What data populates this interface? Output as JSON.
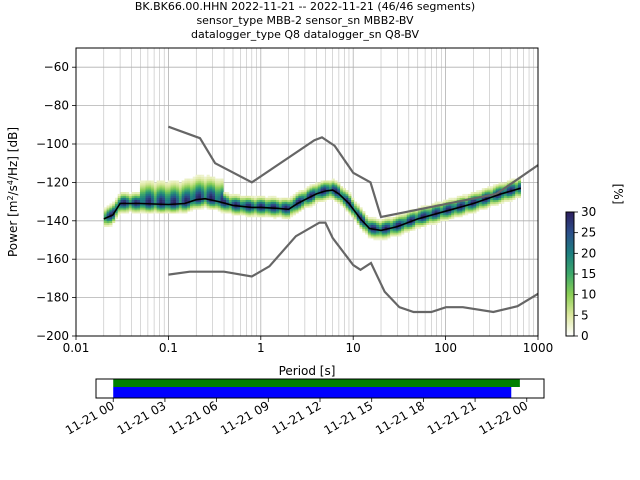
{
  "chart_data": [
    {
      "type": "heatmap",
      "title_lines": [
        "BK.BK66.00.HHN   2022-11-21 -- 2022-11-21  (46/46 segments)",
        "sensor_type MBB-2 sensor_sn MBB2-BV",
        "datalogger_type Q8 datalogger_sn Q8-BV"
      ],
      "xlabel": "Period [s]",
      "ylabel": "Power [m²/s⁴/Hz] [dB]",
      "ylabel_parts": {
        "pre": "Power [m",
        "sup1": "2",
        "mid": "/s",
        "sup2": "4",
        "post": "/Hz] [dB]"
      },
      "xscale": "log",
      "xlim": [
        0.01,
        1000
      ],
      "ylim": [
        -200,
        -50
      ],
      "xticks": [
        0.01,
        0.1,
        1,
        10,
        100,
        1000
      ],
      "xtick_labels": [
        "0.01",
        "0.1",
        "1",
        "10",
        "100",
        "1000"
      ],
      "yticks": [
        -200,
        -180,
        -160,
        -140,
        -120,
        -100,
        -80,
        -60
      ],
      "ytick_labels": [
        "−200",
        "−180",
        "−160",
        "−140",
        "−120",
        "−100",
        "−80",
        "−60"
      ],
      "grid": true,
      "colorbar": {
        "label": "[%]",
        "range": [
          0,
          30
        ],
        "ticks": [
          0,
          5,
          10,
          15,
          20,
          25,
          30
        ],
        "tick_labels": [
          "0",
          "5",
          "10",
          "15",
          "20",
          "25",
          "30"
        ],
        "colors": [
          "#ffffff",
          "#dde8a0",
          "#8ccf55",
          "#3da86a",
          "#1d7f80",
          "#2c4f8a",
          "#2d1e5e"
        ]
      },
      "noise_model_high": [
        [
          0.1,
          -91
        ],
        [
          0.22,
          -97
        ],
        [
          0.32,
          -110
        ],
        [
          0.8,
          -120
        ],
        [
          3.8,
          -98
        ],
        [
          4.6,
          -96.5
        ],
        [
          6.3,
          -101
        ],
        [
          10,
          -115
        ],
        [
          15.4,
          -120
        ],
        [
          20,
          -138
        ],
        [
          354.8,
          -126
        ],
        [
          1000,
          -111
        ]
      ],
      "noise_model_low": [
        [
          0.1,
          -168
        ],
        [
          0.17,
          -166.5
        ],
        [
          0.4,
          -166.5
        ],
        [
          0.8,
          -169
        ],
        [
          1.24,
          -163.7
        ],
        [
          2.4,
          -148
        ],
        [
          4.3,
          -141
        ],
        [
          5,
          -141
        ],
        [
          6,
          -149
        ],
        [
          10,
          -163
        ],
        [
          12,
          -165.5
        ],
        [
          15.6,
          -162
        ],
        [
          21.9,
          -177
        ],
        [
          31.6,
          -185
        ],
        [
          45,
          -187.5
        ],
        [
          70,
          -187.5
        ],
        [
          101,
          -185
        ],
        [
          154,
          -185
        ],
        [
          328,
          -187.5
        ],
        [
          600,
          -184.5
        ],
        [
          1000,
          -178
        ]
      ],
      "mode_curve": [
        [
          0.02,
          -139
        ],
        [
          0.025,
          -137
        ],
        [
          0.03,
          -131
        ],
        [
          0.05,
          -131
        ],
        [
          0.1,
          -131.5
        ],
        [
          0.15,
          -131
        ],
        [
          0.2,
          -129
        ],
        [
          0.25,
          -128.5
        ],
        [
          0.35,
          -130
        ],
        [
          0.5,
          -132
        ],
        [
          0.8,
          -133
        ],
        [
          1,
          -133
        ],
        [
          1.5,
          -133.5
        ],
        [
          2,
          -134
        ],
        [
          2.5,
          -131
        ],
        [
          3,
          -129
        ],
        [
          4,
          -126
        ],
        [
          5,
          -124.5
        ],
        [
          6,
          -124
        ],
        [
          7,
          -126
        ],
        [
          9,
          -131
        ],
        [
          12,
          -139
        ],
        [
          15,
          -144
        ],
        [
          20,
          -145
        ],
        [
          30,
          -143
        ],
        [
          50,
          -139
        ],
        [
          100,
          -135
        ],
        [
          200,
          -131
        ],
        [
          400,
          -126
        ],
        [
          650,
          -123
        ]
      ],
      "density_band": {
        "period_range": [
          0.02,
          650
        ],
        "low_offset_db": -5,
        "high_offset_db": 5,
        "upper_spread_db": 11,
        "upper_spread_period": [
          0.05,
          0.4
        ]
      }
    },
    {
      "type": "timeline",
      "xtick_labels": [
        "11-21 00",
        "11-21 03",
        "11-21 06",
        "11-21 09",
        "11-21 12",
        "11-21 15",
        "11-21 18",
        "11-21 21",
        "11-22 00"
      ],
      "xlim_hours": [
        -1,
        25
      ],
      "bars": [
        {
          "start_hours": 0,
          "end_hours": 23.6,
          "color": "#008000"
        },
        {
          "start_hours": 0,
          "end_hours": 23.1,
          "color": "#0000ff"
        }
      ]
    }
  ]
}
